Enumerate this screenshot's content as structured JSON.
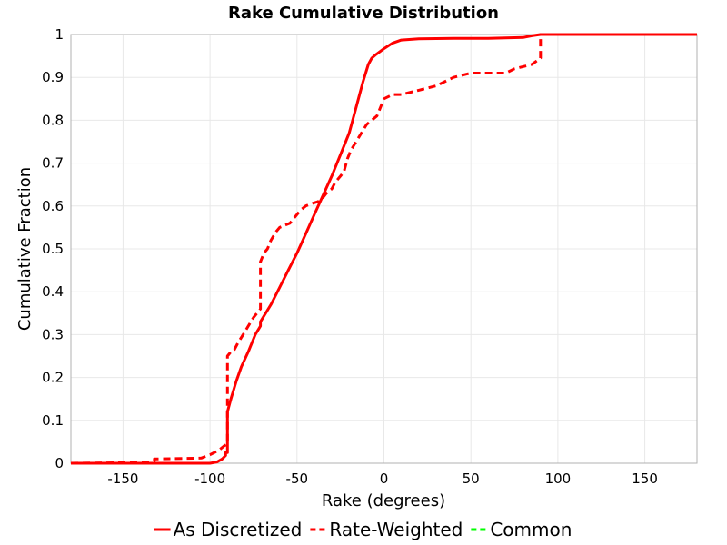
{
  "chart_data": {
    "type": "line",
    "title": "Rake Cumulative Distribution",
    "xlabel": "Rake (degrees)",
    "ylabel": "Cumulative Fraction",
    "xlim": [
      -180,
      180
    ],
    "ylim": [
      0,
      1
    ],
    "x_ticks": [
      -150,
      -100,
      -50,
      0,
      50,
      100,
      150
    ],
    "x_tick_labels": [
      "-150",
      "-100",
      "-50",
      "0",
      "50",
      "100",
      "150"
    ],
    "y_ticks": [
      0,
      0.1,
      0.2,
      0.3,
      0.4,
      0.5,
      0.6,
      0.7,
      0.8,
      0.9,
      1
    ],
    "y_tick_labels": [
      "0",
      "0.1",
      "0.2",
      "0.3",
      "0.4",
      "0.5",
      "0.6",
      "0.7",
      "0.8",
      "0.9",
      "1"
    ],
    "grid": true,
    "legend_position": "bottom",
    "series": [
      {
        "name": "As Discretized",
        "color": "#ff0000",
        "dash": "solid",
        "x": [
          -180,
          -100,
          -96,
          -93,
          -91,
          -91,
          -90,
          -90,
          -88,
          -85,
          -82,
          -78,
          -74,
          -71,
          -71,
          -65,
          -60,
          -55,
          -50,
          -45,
          -40,
          -35,
          -30,
          -25,
          -20,
          -16,
          -12,
          -9,
          -7,
          -5,
          -3,
          0,
          5,
          10,
          20,
          40,
          60,
          80,
          85,
          90,
          180
        ],
        "y": [
          0,
          0,
          0.003,
          0.01,
          0.018,
          0.025,
          0.025,
          0.12,
          0.15,
          0.19,
          0.225,
          0.26,
          0.3,
          0.32,
          0.33,
          0.37,
          0.41,
          0.45,
          0.49,
          0.535,
          0.58,
          0.625,
          0.67,
          0.72,
          0.77,
          0.83,
          0.89,
          0.93,
          0.945,
          0.952,
          0.958,
          0.967,
          0.98,
          0.987,
          0.99,
          0.991,
          0.991,
          0.993,
          0.997,
          1,
          1
        ]
      },
      {
        "name": "Rate-Weighted",
        "color": "#ff0000",
        "dash": "dashed",
        "x": [
          -180,
          -135,
          -132,
          -132,
          -105,
          -100,
          -95,
          -92,
          -90,
          -90,
          -88,
          -86,
          -84,
          -81,
          -78,
          -75,
          -71,
          -71,
          -69,
          -67,
          -65,
          -62,
          -60,
          -57,
          -54,
          -50,
          -48,
          -45,
          -42,
          -38,
          -35,
          -33,
          -30,
          -28,
          -25,
          -23,
          -21,
          -19,
          -16,
          -13,
          -10,
          -7,
          -4,
          -2,
          0,
          5,
          10,
          15,
          20,
          25,
          30,
          35,
          40,
          45,
          50,
          60,
          70,
          75,
          80,
          85,
          90,
          90,
          180
        ],
        "y": [
          0,
          0.002,
          0.005,
          0.01,
          0.012,
          0.02,
          0.03,
          0.04,
          0.045,
          0.25,
          0.26,
          0.265,
          0.28,
          0.3,
          0.32,
          0.34,
          0.36,
          0.47,
          0.49,
          0.5,
          0.52,
          0.54,
          0.55,
          0.555,
          0.56,
          0.58,
          0.59,
          0.6,
          0.605,
          0.61,
          0.62,
          0.63,
          0.64,
          0.655,
          0.67,
          0.68,
          0.71,
          0.73,
          0.75,
          0.77,
          0.79,
          0.8,
          0.81,
          0.83,
          0.85,
          0.86,
          0.86,
          0.865,
          0.87,
          0.875,
          0.88,
          0.89,
          0.9,
          0.905,
          0.91,
          0.91,
          0.91,
          0.92,
          0.925,
          0.93,
          0.945,
          1,
          1
        ]
      },
      {
        "name": "Common",
        "color": "#00ff00",
        "dash": "dashed",
        "x": [],
        "y": []
      }
    ]
  }
}
